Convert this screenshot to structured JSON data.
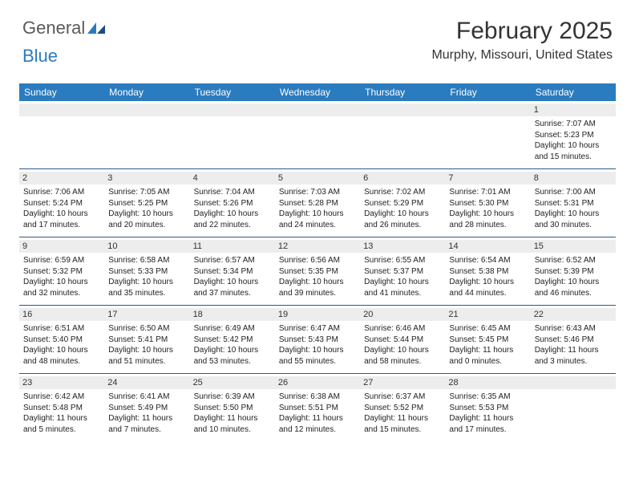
{
  "logo": {
    "part1": "General",
    "part2": "Blue"
  },
  "header": {
    "month_title": "February 2025",
    "location": "Murphy, Missouri, United States"
  },
  "colors": {
    "header_bg": "#2b7bbf",
    "header_text": "#ffffff",
    "row_border": "#2b5b8a",
    "date_bg": "#ededed",
    "text": "#222222",
    "logo_gray": "#5a5a5a",
    "logo_blue": "#2b7bbf"
  },
  "day_names": [
    "Sunday",
    "Monday",
    "Tuesday",
    "Wednesday",
    "Thursday",
    "Friday",
    "Saturday"
  ],
  "weeks": [
    [
      {
        "date": "",
        "lines": []
      },
      {
        "date": "",
        "lines": []
      },
      {
        "date": "",
        "lines": []
      },
      {
        "date": "",
        "lines": []
      },
      {
        "date": "",
        "lines": []
      },
      {
        "date": "",
        "lines": []
      },
      {
        "date": "1",
        "lines": [
          "Sunrise: 7:07 AM",
          "Sunset: 5:23 PM",
          "Daylight: 10 hours",
          "and 15 minutes."
        ]
      }
    ],
    [
      {
        "date": "2",
        "lines": [
          "Sunrise: 7:06 AM",
          "Sunset: 5:24 PM",
          "Daylight: 10 hours",
          "and 17 minutes."
        ]
      },
      {
        "date": "3",
        "lines": [
          "Sunrise: 7:05 AM",
          "Sunset: 5:25 PM",
          "Daylight: 10 hours",
          "and 20 minutes."
        ]
      },
      {
        "date": "4",
        "lines": [
          "Sunrise: 7:04 AM",
          "Sunset: 5:26 PM",
          "Daylight: 10 hours",
          "and 22 minutes."
        ]
      },
      {
        "date": "5",
        "lines": [
          "Sunrise: 7:03 AM",
          "Sunset: 5:28 PM",
          "Daylight: 10 hours",
          "and 24 minutes."
        ]
      },
      {
        "date": "6",
        "lines": [
          "Sunrise: 7:02 AM",
          "Sunset: 5:29 PM",
          "Daylight: 10 hours",
          "and 26 minutes."
        ]
      },
      {
        "date": "7",
        "lines": [
          "Sunrise: 7:01 AM",
          "Sunset: 5:30 PM",
          "Daylight: 10 hours",
          "and 28 minutes."
        ]
      },
      {
        "date": "8",
        "lines": [
          "Sunrise: 7:00 AM",
          "Sunset: 5:31 PM",
          "Daylight: 10 hours",
          "and 30 minutes."
        ]
      }
    ],
    [
      {
        "date": "9",
        "lines": [
          "Sunrise: 6:59 AM",
          "Sunset: 5:32 PM",
          "Daylight: 10 hours",
          "and 32 minutes."
        ]
      },
      {
        "date": "10",
        "lines": [
          "Sunrise: 6:58 AM",
          "Sunset: 5:33 PM",
          "Daylight: 10 hours",
          "and 35 minutes."
        ]
      },
      {
        "date": "11",
        "lines": [
          "Sunrise: 6:57 AM",
          "Sunset: 5:34 PM",
          "Daylight: 10 hours",
          "and 37 minutes."
        ]
      },
      {
        "date": "12",
        "lines": [
          "Sunrise: 6:56 AM",
          "Sunset: 5:35 PM",
          "Daylight: 10 hours",
          "and 39 minutes."
        ]
      },
      {
        "date": "13",
        "lines": [
          "Sunrise: 6:55 AM",
          "Sunset: 5:37 PM",
          "Daylight: 10 hours",
          "and 41 minutes."
        ]
      },
      {
        "date": "14",
        "lines": [
          "Sunrise: 6:54 AM",
          "Sunset: 5:38 PM",
          "Daylight: 10 hours",
          "and 44 minutes."
        ]
      },
      {
        "date": "15",
        "lines": [
          "Sunrise: 6:52 AM",
          "Sunset: 5:39 PM",
          "Daylight: 10 hours",
          "and 46 minutes."
        ]
      }
    ],
    [
      {
        "date": "16",
        "lines": [
          "Sunrise: 6:51 AM",
          "Sunset: 5:40 PM",
          "Daylight: 10 hours",
          "and 48 minutes."
        ]
      },
      {
        "date": "17",
        "lines": [
          "Sunrise: 6:50 AM",
          "Sunset: 5:41 PM",
          "Daylight: 10 hours",
          "and 51 minutes."
        ]
      },
      {
        "date": "18",
        "lines": [
          "Sunrise: 6:49 AM",
          "Sunset: 5:42 PM",
          "Daylight: 10 hours",
          "and 53 minutes."
        ]
      },
      {
        "date": "19",
        "lines": [
          "Sunrise: 6:47 AM",
          "Sunset: 5:43 PM",
          "Daylight: 10 hours",
          "and 55 minutes."
        ]
      },
      {
        "date": "20",
        "lines": [
          "Sunrise: 6:46 AM",
          "Sunset: 5:44 PM",
          "Daylight: 10 hours",
          "and 58 minutes."
        ]
      },
      {
        "date": "21",
        "lines": [
          "Sunrise: 6:45 AM",
          "Sunset: 5:45 PM",
          "Daylight: 11 hours",
          "and 0 minutes."
        ]
      },
      {
        "date": "22",
        "lines": [
          "Sunrise: 6:43 AM",
          "Sunset: 5:46 PM",
          "Daylight: 11 hours",
          "and 3 minutes."
        ]
      }
    ],
    [
      {
        "date": "23",
        "lines": [
          "Sunrise: 6:42 AM",
          "Sunset: 5:48 PM",
          "Daylight: 11 hours",
          "and 5 minutes."
        ]
      },
      {
        "date": "24",
        "lines": [
          "Sunrise: 6:41 AM",
          "Sunset: 5:49 PM",
          "Daylight: 11 hours",
          "and 7 minutes."
        ]
      },
      {
        "date": "25",
        "lines": [
          "Sunrise: 6:39 AM",
          "Sunset: 5:50 PM",
          "Daylight: 11 hours",
          "and 10 minutes."
        ]
      },
      {
        "date": "26",
        "lines": [
          "Sunrise: 6:38 AM",
          "Sunset: 5:51 PM",
          "Daylight: 11 hours",
          "and 12 minutes."
        ]
      },
      {
        "date": "27",
        "lines": [
          "Sunrise: 6:37 AM",
          "Sunset: 5:52 PM",
          "Daylight: 11 hours",
          "and 15 minutes."
        ]
      },
      {
        "date": "28",
        "lines": [
          "Sunrise: 6:35 AM",
          "Sunset: 5:53 PM",
          "Daylight: 11 hours",
          "and 17 minutes."
        ]
      },
      {
        "date": "",
        "lines": []
      }
    ]
  ]
}
